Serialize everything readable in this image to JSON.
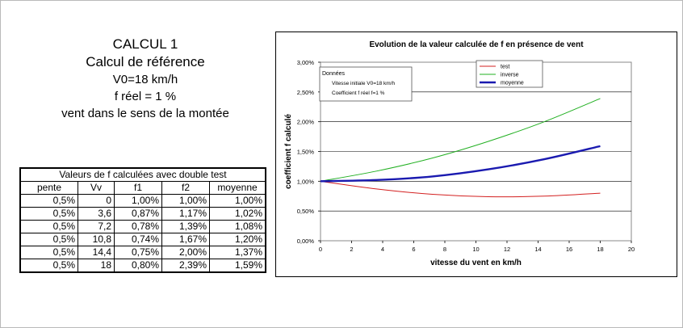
{
  "heading": {
    "calc": "CALCUL 1",
    "subtitle": "Calcul de référence",
    "v0": "V0=18 km/h",
    "freel": "f réel = 1 %",
    "vent": "vent dans le sens de la montée"
  },
  "table": {
    "caption": "Valeurs de f calculées avec double test",
    "headers": [
      "pente",
      "Vv",
      "f1",
      "f2",
      "moyenne"
    ],
    "rows": [
      [
        "0,5%",
        "0",
        "1,00%",
        "1,00%",
        "1,00%"
      ],
      [
        "0,5%",
        "3,6",
        "0,87%",
        "1,17%",
        "1,02%"
      ],
      [
        "0,5%",
        "7,2",
        "0,78%",
        "1,39%",
        "1,08%"
      ],
      [
        "0,5%",
        "10,8",
        "0,74%",
        "1,67%",
        "1,20%"
      ],
      [
        "0,5%",
        "14,4",
        "0,75%",
        "2,00%",
        "1,37%"
      ],
      [
        "0,5%",
        "18",
        "0,80%",
        "2,39%",
        "1,59%"
      ]
    ]
  },
  "chart_data": {
    "type": "line",
    "title": "Evolution de la valeur calculée de f en présence de vent",
    "xlabel": "vitesse du vent en km/h",
    "ylabel": "coefficient f calculé",
    "xlim": [
      0,
      20
    ],
    "ylim": [
      0,
      3
    ],
    "xticks": [
      "0",
      "2",
      "4",
      "6",
      "8",
      "10",
      "12",
      "14",
      "16",
      "18",
      "20"
    ],
    "yticks": [
      "0,00%",
      "0,50%",
      "1,00%",
      "1,50%",
      "2,00%",
      "2,50%",
      "3,00%"
    ],
    "grid": true,
    "legend_position": "top-right",
    "annotation": {
      "title": "Données",
      "line1": "Vitesse initiale V0=18 km/h",
      "line2": "Coefficient f réel f=1 %"
    },
    "x": [
      0,
      3.6,
      7.2,
      10.8,
      14.4,
      18
    ],
    "series": [
      {
        "name": "test",
        "color": "#d32020",
        "width": 1,
        "values": [
          1.0,
          0.87,
          0.78,
          0.74,
          0.75,
          0.8
        ]
      },
      {
        "name": "inverse",
        "color": "#22b022",
        "width": 1,
        "values": [
          1.0,
          1.17,
          1.39,
          1.67,
          2.0,
          2.39
        ]
      },
      {
        "name": "moyenne",
        "color": "#1a1ab0",
        "width": 2.4,
        "values": [
          1.0,
          1.02,
          1.08,
          1.2,
          1.37,
          1.59
        ]
      }
    ]
  }
}
